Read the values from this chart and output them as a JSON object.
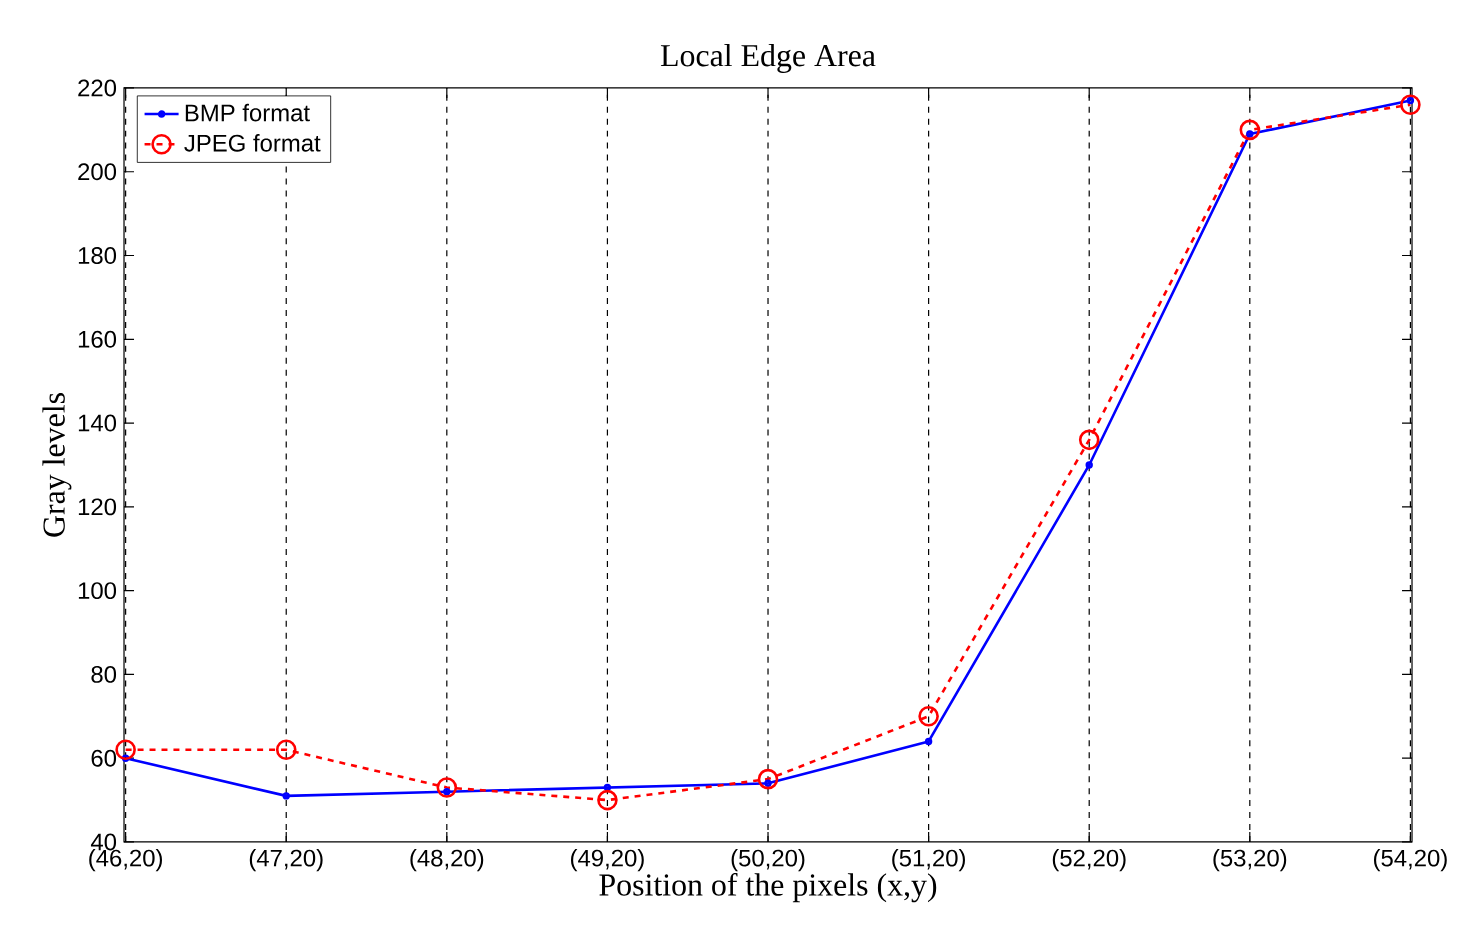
{
  "chart_data": {
    "type": "line",
    "title": "Local Edge Area",
    "xlabel": "Position of the pixels (x,y)",
    "ylabel": "Gray levels",
    "categories": [
      "(46,20)",
      "(47,20)",
      "(48,20)",
      "(49,20)",
      "(50,20)",
      "(51,20)",
      "(52,20)",
      "(53,20)",
      "(54,20)"
    ],
    "series": [
      {
        "name": "BMP format",
        "color": "#0000ff",
        "marker": "circle",
        "line_style": "solid",
        "values": [
          60,
          51,
          52,
          53,
          54,
          64,
          130,
          209,
          217
        ]
      },
      {
        "name": "JPEG format",
        "color": "#ff0000",
        "marker": "circle",
        "line_style": "dashed",
        "values": [
          62,
          62,
          53,
          50,
          55,
          70,
          136,
          210,
          216
        ]
      }
    ],
    "ylim": [
      40,
      220
    ],
    "yticks": [
      40,
      60,
      80,
      100,
      120,
      140,
      160,
      180,
      200,
      220
    ],
    "grid": "x",
    "legend": "top left"
  }
}
